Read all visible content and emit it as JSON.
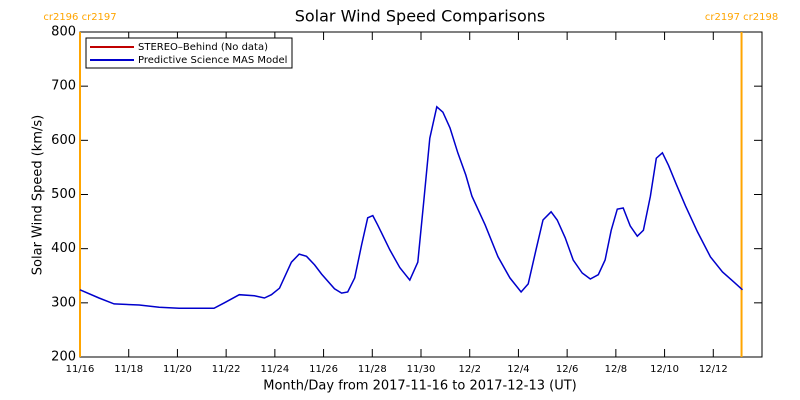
{
  "chart_data": {
    "type": "line",
    "title": "Solar Wind Speed Comparisons",
    "xlabel": "Month/Day from 2017-11-16 to 2017-12-13 (UT)",
    "ylabel": "Solar Wind Speed (km/s)",
    "xlim": [
      0,
      28
    ],
    "ylim": [
      200,
      800
    ],
    "yticks": [
      200,
      300,
      400,
      500,
      600,
      700,
      800
    ],
    "xticks": [
      {
        "value": 0,
        "label": "11/16"
      },
      {
        "value": 2,
        "label": "11/18"
      },
      {
        "value": 4,
        "label": "11/20"
      },
      {
        "value": 6,
        "label": "11/22"
      },
      {
        "value": 8,
        "label": "11/24"
      },
      {
        "value": 10,
        "label": "11/26"
      },
      {
        "value": 12,
        "label": "11/28"
      },
      {
        "value": 14,
        "label": "11/30"
      },
      {
        "value": 16,
        "label": "12/2"
      },
      {
        "value": 18,
        "label": "12/4"
      },
      {
        "value": 20,
        "label": "12/6"
      },
      {
        "value": 22,
        "label": "12/8"
      },
      {
        "value": 24,
        "label": "12/10"
      },
      {
        "value": 26,
        "label": "12/12"
      }
    ],
    "legend": "upper left",
    "series": [
      {
        "name": "STEREO–Behind (No data)",
        "color": "#c00000",
        "x": [],
        "values": []
      },
      {
        "name": "Predictive Science MAS Model",
        "color": "#0000cc",
        "x": [
          0,
          0.78,
          1.4,
          2.43,
          3.25,
          4.07,
          5.5,
          5.93,
          6.54,
          7.16,
          7.57,
          7.86,
          8.19,
          8.68,
          9.0,
          9.3,
          9.63,
          9.92,
          10.45,
          10.74,
          10.99,
          11.28,
          11.56,
          11.81,
          12.02,
          12.22,
          12.72,
          13.13,
          13.54,
          13.87,
          14.12,
          14.36,
          14.65,
          14.9,
          15.19,
          15.51,
          15.84,
          16.09,
          16.63,
          17.16,
          17.65,
          18.11,
          18.4,
          18.72,
          19.01,
          19.34,
          19.59,
          19.92,
          20.25,
          20.62,
          20.95,
          21.28,
          21.56,
          21.81,
          22.06,
          22.3,
          22.59,
          22.88,
          23.13,
          23.42,
          23.66,
          23.91,
          24.16,
          24.49,
          24.86,
          25.35,
          25.88,
          26.38,
          26.83,
          27.2
        ],
        "values": [
          324,
          309,
          298,
          296,
          292,
          290,
          290,
          300,
          315,
          313,
          309,
          315,
          327,
          375,
          390,
          386,
          370,
          353,
          326,
          318,
          320,
          346,
          407,
          457,
          461,
          444,
          398,
          365,
          342,
          375,
          490,
          604,
          662,
          652,
          623,
          577,
          536,
          497,
          444,
          385,
          346,
          320,
          335,
          398,
          453,
          468,
          453,
          420,
          379,
          355,
          344,
          352,
          379,
          434,
          473,
          475,
          442,
          423,
          434,
          497,
          567,
          577,
          554,
          518,
          479,
          431,
          385,
          357,
          339,
          324
        ]
      }
    ],
    "markers": {
      "color": "#ffa500",
      "items": [
        {
          "x": 0,
          "label": "cr2196 cr2197"
        },
        {
          "x": 27.16,
          "label": "cr2197 cr2198"
        }
      ]
    }
  }
}
